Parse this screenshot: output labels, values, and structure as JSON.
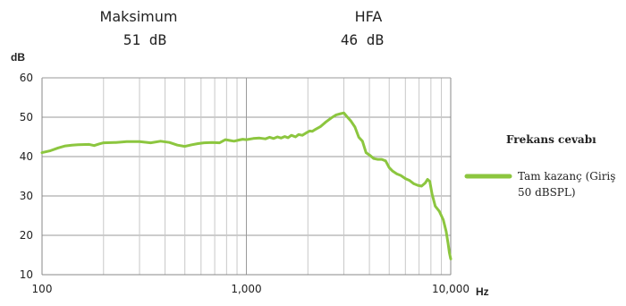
{
  "summary": {
    "items": [
      {
        "label": "Maksimum",
        "value": "51 dB"
      },
      {
        "label": "HFA",
        "value": "46 dB"
      }
    ]
  },
  "colors": {
    "series": "#8cc63f",
    "grid_major": "#9a9a9a",
    "grid_minor": "#c8c8c8",
    "axis": "#888888"
  },
  "chart_data": {
    "type": "line",
    "title": "",
    "xlabel": "Hz",
    "ylabel": "dB",
    "xscale": "log",
    "xlim": [
      100,
      10000
    ],
    "ylim": [
      10,
      60
    ],
    "grid": true,
    "legend_placement": "right",
    "legend_title": "Frekans cevabı",
    "x_ticks": [
      {
        "value": 100,
        "label": "100"
      },
      {
        "value": 1000,
        "label": "1,000"
      },
      {
        "value": 10000,
        "label": "10,000"
      }
    ],
    "y_ticks": [
      {
        "value": 10,
        "label": "10"
      },
      {
        "value": 20,
        "label": "20"
      },
      {
        "value": 30,
        "label": "30"
      },
      {
        "value": 40,
        "label": "40"
      },
      {
        "value": 50,
        "label": "50"
      },
      {
        "value": 60,
        "label": "60"
      }
    ],
    "series": [
      {
        "name": "Tam kazanç (Giriş 50 dBSPL)",
        "name_lines": [
          "Tam kazanç (Giriş",
          "50 dBSPL)"
        ],
        "x": [
          100,
          110,
          120,
          130,
          140,
          150,
          170,
          180,
          190,
          200,
          230,
          260,
          300,
          340,
          380,
          420,
          460,
          500,
          540,
          580,
          620,
          680,
          740,
          790,
          830,
          870,
          920,
          960,
          1000,
          1080,
          1160,
          1240,
          1300,
          1360,
          1420,
          1480,
          1540,
          1600,
          1660,
          1740,
          1800,
          1880,
          1960,
          2040,
          2100,
          2160,
          2300,
          2450,
          2600,
          2750,
          2900,
          3000,
          3100,
          3250,
          3400,
          3550,
          3700,
          3850,
          4000,
          4200,
          4400,
          4600,
          4800,
          5000,
          5200,
          5450,
          5700,
          6000,
          6300,
          6600,
          6900,
          7200,
          7500,
          7700,
          7900,
          8100,
          8400,
          8800,
          9200,
          9500,
          9700,
          9850,
          10000
        ],
        "y": [
          41.0,
          41.5,
          42.2,
          42.7,
          42.9,
          43.0,
          43.1,
          42.8,
          43.2,
          43.5,
          43.6,
          43.8,
          43.8,
          43.5,
          43.9,
          43.6,
          42.9,
          42.6,
          43.0,
          43.3,
          43.5,
          43.6,
          43.5,
          44.3,
          44.1,
          43.9,
          44.2,
          44.4,
          44.3,
          44.6,
          44.7,
          44.5,
          44.9,
          44.6,
          45.0,
          44.7,
          45.1,
          44.8,
          45.4,
          45.0,
          45.6,
          45.4,
          46.0,
          46.5,
          46.4,
          46.8,
          47.6,
          48.8,
          49.8,
          50.6,
          50.9,
          51.1,
          50.2,
          49.0,
          47.5,
          44.9,
          43.9,
          41.0,
          40.4,
          39.5,
          39.3,
          39.3,
          38.9,
          37.2,
          36.3,
          35.6,
          35.2,
          34.4,
          33.9,
          33.1,
          32.7,
          32.5,
          33.3,
          34.2,
          33.7,
          30.5,
          27.4,
          26.1,
          23.9,
          21.0,
          18.0,
          15.6,
          14.0
        ]
      }
    ]
  }
}
